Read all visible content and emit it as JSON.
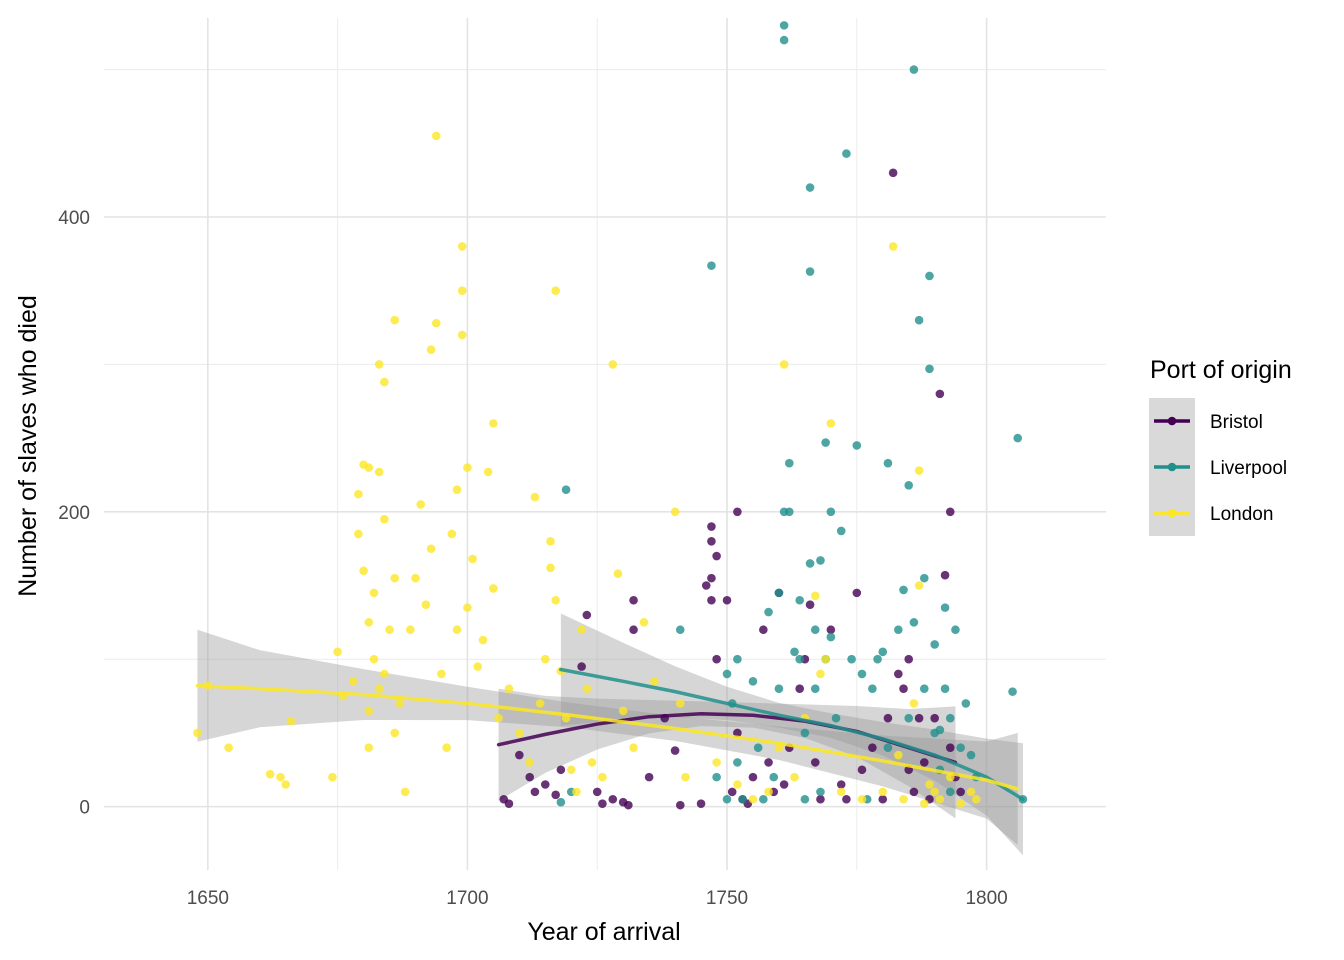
{
  "chart_data": {
    "type": "scatter",
    "title": "",
    "xlabel": "Year of arrival",
    "ylabel": "Number of slaves who died",
    "xlim": [
      1630,
      1823
    ],
    "ylim": [
      -43,
      535
    ],
    "x_ticks": [
      1650,
      1700,
      1750,
      1800
    ],
    "x_tick_labels": [
      "1650",
      "1700",
      "1750",
      "1800"
    ],
    "y_ticks": [
      0,
      200,
      400
    ],
    "y_tick_labels": [
      "0",
      "200",
      "400"
    ],
    "grid": true,
    "legend": {
      "title": "Port of origin",
      "position": "right"
    },
    "smoothers": "loess with grey confidence bands",
    "series": [
      {
        "name": "Bristol",
        "color": "#440154",
        "points": [
          [
            1707,
            5
          ],
          [
            1708,
            2
          ],
          [
            1710,
            35
          ],
          [
            1712,
            20
          ],
          [
            1713,
            10
          ],
          [
            1715,
            15
          ],
          [
            1717,
            8
          ],
          [
            1718,
            25
          ],
          [
            1722,
            95
          ],
          [
            1723,
            130
          ],
          [
            1725,
            10
          ],
          [
            1726,
            2
          ],
          [
            1728,
            5
          ],
          [
            1730,
            3
          ],
          [
            1731,
            1
          ],
          [
            1732,
            140
          ],
          [
            1732,
            120
          ],
          [
            1735,
            20
          ],
          [
            1738,
            60
          ],
          [
            1740,
            38
          ],
          [
            1741,
            1
          ],
          [
            1745,
            2
          ],
          [
            1746,
            150
          ],
          [
            1747,
            190
          ],
          [
            1747,
            180
          ],
          [
            1747,
            155
          ],
          [
            1747,
            140
          ],
          [
            1748,
            100
          ],
          [
            1748,
            170
          ],
          [
            1750,
            140
          ],
          [
            1751,
            10
          ],
          [
            1752,
            200
          ],
          [
            1752,
            50
          ],
          [
            1753,
            5
          ],
          [
            1754,
            2
          ],
          [
            1755,
            20
          ],
          [
            1757,
            120
          ],
          [
            1758,
            30
          ],
          [
            1759,
            10
          ],
          [
            1760,
            145
          ],
          [
            1761,
            15
          ],
          [
            1762,
            40
          ],
          [
            1764,
            80
          ],
          [
            1765,
            100
          ],
          [
            1766,
            137
          ],
          [
            1767,
            30
          ],
          [
            1768,
            5
          ],
          [
            1770,
            120
          ],
          [
            1772,
            15
          ],
          [
            1773,
            5
          ],
          [
            1775,
            145
          ],
          [
            1776,
            25
          ],
          [
            1778,
            40
          ],
          [
            1780,
            5
          ],
          [
            1781,
            60
          ],
          [
            1782,
            430
          ],
          [
            1783,
            90
          ],
          [
            1784,
            80
          ],
          [
            1785,
            100
          ],
          [
            1785,
            25
          ],
          [
            1786,
            10
          ],
          [
            1787,
            60
          ],
          [
            1788,
            30
          ],
          [
            1789,
            5
          ],
          [
            1790,
            60
          ],
          [
            1791,
            280
          ],
          [
            1792,
            157
          ],
          [
            1793,
            200
          ],
          [
            1793,
            40
          ],
          [
            1794,
            20
          ],
          [
            1795,
            10
          ]
        ],
        "fit": {
          "x": [
            1706,
            1715,
            1725,
            1735,
            1745,
            1755,
            1765,
            1775,
            1785,
            1794
          ],
          "y": [
            42,
            49,
            56,
            61,
            63,
            62,
            58,
            51,
            40,
            30
          ]
        }
      },
      {
        "name": "Liverpool",
        "color": "#21908C",
        "points": [
          [
            1718,
            3
          ],
          [
            1719,
            215
          ],
          [
            1720,
            10
          ],
          [
            1741,
            120
          ],
          [
            1747,
            367
          ],
          [
            1748,
            20
          ],
          [
            1750,
            5
          ],
          [
            1750,
            90
          ],
          [
            1751,
            70
          ],
          [
            1752,
            30
          ],
          [
            1752,
            100
          ],
          [
            1753,
            5
          ],
          [
            1755,
            85
          ],
          [
            1756,
            40
          ],
          [
            1757,
            5
          ],
          [
            1758,
            132
          ],
          [
            1759,
            20
          ],
          [
            1760,
            80
          ],
          [
            1760,
            145
          ],
          [
            1761,
            530
          ],
          [
            1761,
            520
          ],
          [
            1761,
            200
          ],
          [
            1762,
            233
          ],
          [
            1762,
            200
          ],
          [
            1763,
            105
          ],
          [
            1764,
            140
          ],
          [
            1764,
            100
          ],
          [
            1765,
            50
          ],
          [
            1765,
            5
          ],
          [
            1766,
            420
          ],
          [
            1766,
            363
          ],
          [
            1766,
            165
          ],
          [
            1767,
            120
          ],
          [
            1767,
            80
          ],
          [
            1768,
            167
          ],
          [
            1768,
            10
          ],
          [
            1769,
            247
          ],
          [
            1769,
            100
          ],
          [
            1770,
            200
          ],
          [
            1770,
            115
          ],
          [
            1771,
            60
          ],
          [
            1772,
            187
          ],
          [
            1773,
            443
          ],
          [
            1774,
            100
          ],
          [
            1775,
            245
          ],
          [
            1776,
            90
          ],
          [
            1777,
            5
          ],
          [
            1778,
            80
          ],
          [
            1779,
            100
          ],
          [
            1780,
            105
          ],
          [
            1781,
            233
          ],
          [
            1781,
            40
          ],
          [
            1783,
            120
          ],
          [
            1784,
            147
          ],
          [
            1785,
            218
          ],
          [
            1785,
            60
          ],
          [
            1786,
            500
          ],
          [
            1786,
            125
          ],
          [
            1787,
            330
          ],
          [
            1788,
            155
          ],
          [
            1788,
            80
          ],
          [
            1789,
            360
          ],
          [
            1789,
            297
          ],
          [
            1790,
            110
          ],
          [
            1790,
            50
          ],
          [
            1791,
            52
          ],
          [
            1791,
            25
          ],
          [
            1792,
            135
          ],
          [
            1792,
            80
          ],
          [
            1793,
            60
          ],
          [
            1793,
            10
          ],
          [
            1794,
            120
          ],
          [
            1795,
            40
          ],
          [
            1796,
            70
          ],
          [
            1797,
            35
          ],
          [
            1798,
            20
          ],
          [
            1805,
            78
          ],
          [
            1806,
            250
          ],
          [
            1807,
            5
          ]
        ],
        "fit": {
          "x": [
            1718,
            1730,
            1740,
            1750,
            1760,
            1770,
            1780,
            1790,
            1800,
            1807
          ],
          "y": [
            93,
            85,
            78,
            70,
            62,
            55,
            46,
            35,
            20,
            5
          ]
        }
      },
      {
        "name": "London",
        "color": "#FDE725",
        "points": [
          [
            1648,
            50
          ],
          [
            1650,
            82
          ],
          [
            1654,
            40
          ],
          [
            1662,
            22
          ],
          [
            1664,
            20
          ],
          [
            1665,
            15
          ],
          [
            1666,
            58
          ],
          [
            1674,
            20
          ],
          [
            1675,
            105
          ],
          [
            1676,
            75
          ],
          [
            1678,
            85
          ],
          [
            1679,
            212
          ],
          [
            1679,
            185
          ],
          [
            1680,
            160
          ],
          [
            1680,
            232
          ],
          [
            1681,
            230
          ],
          [
            1681,
            125
          ],
          [
            1681,
            65
          ],
          [
            1681,
            40
          ],
          [
            1682,
            145
          ],
          [
            1682,
            100
          ],
          [
            1683,
            300
          ],
          [
            1683,
            227
          ],
          [
            1683,
            80
          ],
          [
            1684,
            288
          ],
          [
            1684,
            195
          ],
          [
            1684,
            90
          ],
          [
            1685,
            120
          ],
          [
            1686,
            330
          ],
          [
            1686,
            155
          ],
          [
            1686,
            50
          ],
          [
            1687,
            70
          ],
          [
            1688,
            10
          ],
          [
            1689,
            120
          ],
          [
            1690,
            155
          ],
          [
            1691,
            205
          ],
          [
            1692,
            137
          ],
          [
            1693,
            310
          ],
          [
            1693,
            175
          ],
          [
            1694,
            455
          ],
          [
            1694,
            328
          ],
          [
            1695,
            90
          ],
          [
            1696,
            40
          ],
          [
            1697,
            185
          ],
          [
            1698,
            215
          ],
          [
            1698,
            120
          ],
          [
            1699,
            380
          ],
          [
            1699,
            350
          ],
          [
            1699,
            320
          ],
          [
            1700,
            230
          ],
          [
            1700,
            135
          ],
          [
            1701,
            168
          ],
          [
            1702,
            95
          ],
          [
            1703,
            113
          ],
          [
            1704,
            227
          ],
          [
            1705,
            260
          ],
          [
            1705,
            148
          ],
          [
            1706,
            60
          ],
          [
            1708,
            80
          ],
          [
            1710,
            50
          ],
          [
            1712,
            30
          ],
          [
            1713,
            210
          ],
          [
            1714,
            70
          ],
          [
            1715,
            100
          ],
          [
            1716,
            180
          ],
          [
            1716,
            162
          ],
          [
            1717,
            350
          ],
          [
            1717,
            140
          ],
          [
            1718,
            92
          ],
          [
            1719,
            60
          ],
          [
            1720,
            25
          ],
          [
            1721,
            10
          ],
          [
            1722,
            120
          ],
          [
            1723,
            80
          ],
          [
            1724,
            30
          ],
          [
            1726,
            20
          ],
          [
            1728,
            300
          ],
          [
            1729,
            158
          ],
          [
            1730,
            65
          ],
          [
            1732,
            40
          ],
          [
            1734,
            125
          ],
          [
            1736,
            85
          ],
          [
            1740,
            200
          ],
          [
            1741,
            70
          ],
          [
            1742,
            20
          ],
          [
            1748,
            30
          ],
          [
            1752,
            15
          ],
          [
            1755,
            5
          ],
          [
            1758,
            10
          ],
          [
            1760,
            40
          ],
          [
            1761,
            300
          ],
          [
            1763,
            20
          ],
          [
            1765,
            60
          ],
          [
            1767,
            143
          ],
          [
            1768,
            90
          ],
          [
            1769,
            100
          ],
          [
            1770,
            260
          ],
          [
            1772,
            10
          ],
          [
            1776,
            5
          ],
          [
            1780,
            10
          ],
          [
            1782,
            380
          ],
          [
            1783,
            35
          ],
          [
            1784,
            5
          ],
          [
            1786,
            70
          ],
          [
            1787,
            228
          ],
          [
            1787,
            150
          ],
          [
            1788,
            2
          ],
          [
            1789,
            15
          ],
          [
            1790,
            10
          ],
          [
            1791,
            5
          ],
          [
            1793,
            20
          ],
          [
            1795,
            2
          ],
          [
            1797,
            10
          ],
          [
            1798,
            5
          ]
        ],
        "fit": {
          "x": [
            1648,
            1660,
            1680,
            1700,
            1720,
            1740,
            1760,
            1780,
            1800,
            1806
          ],
          "y": [
            82,
            80,
            76,
            70,
            62,
            53,
            43,
            31,
            18,
            12
          ]
        }
      }
    ]
  }
}
